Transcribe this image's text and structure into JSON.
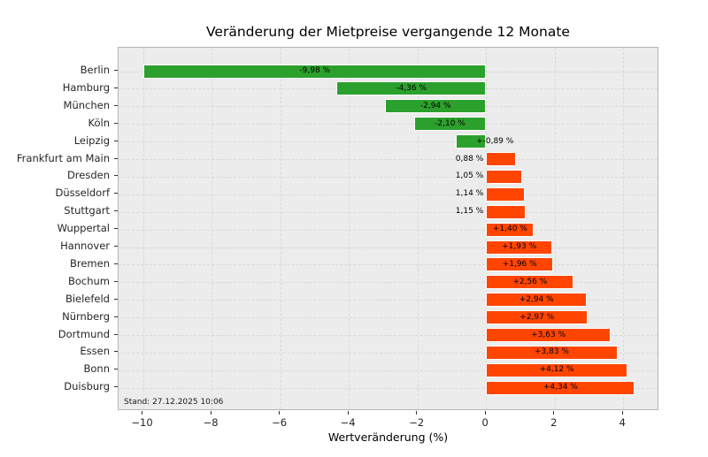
{
  "chart_data": {
    "type": "bar",
    "orientation": "horizontal",
    "title": "Veränderung der Mietpreise vergangende 12 Monate",
    "xlabel": "Wertveränderung (%)",
    "ylabel": "",
    "annotation": "Stand: 27.12.2025 10:06",
    "categories": [
      "Berlin",
      "Hamburg",
      "München",
      "Köln",
      "Leipzig",
      "Frankfurt am Main",
      "Dresden",
      "Düsseldorf",
      "Stuttgart",
      "Wuppertal",
      "Hannover",
      "Bremen",
      "Bochum",
      "Bielefeld",
      "Nürnberg",
      "Dortmund",
      "Essen",
      "Bonn",
      "Duisburg"
    ],
    "values": [
      -9.98,
      -4.36,
      -2.94,
      -2.1,
      -0.89,
      0.88,
      1.05,
      1.14,
      1.15,
      1.4,
      1.93,
      1.96,
      2.56,
      2.94,
      2.97,
      3.63,
      3.83,
      4.12,
      4.34
    ],
    "bar_labels": [
      "-9,98 %",
      "-4,36 %",
      "-2,94 %",
      "-2,10 %",
      "+-0,89 %",
      "0,88 %",
      "1,05 %",
      "1,14 %",
      "1,15 %",
      "+1,40 %",
      "+1,93 %",
      "+1,96 %",
      "+2,56 %",
      "+2,94 %",
      "+2,97 %",
      "+3,63 %",
      "+3,83 %",
      "+4,12 %",
      "+4,34 %"
    ],
    "x_ticks": [
      -10,
      -8,
      -6,
      -4,
      -2,
      0,
      2,
      4
    ],
    "x_tick_labels": [
      "−10",
      "−8",
      "−6",
      "−4",
      "−2",
      "0",
      "2",
      "4"
    ],
    "xlim": [
      -10.71,
      5.05
    ],
    "grid": "both-dashed",
    "legend_position": "none",
    "colors": {
      "negative_bar": "#2ca02c",
      "positive_bar": "#ff4500",
      "bar_edge": "#ffffff",
      "plot_background": "#ececec",
      "figure_background": "#ffffff",
      "grid": "#d9d9d9",
      "spine": "#b4b4b4",
      "text": "#262626"
    }
  }
}
